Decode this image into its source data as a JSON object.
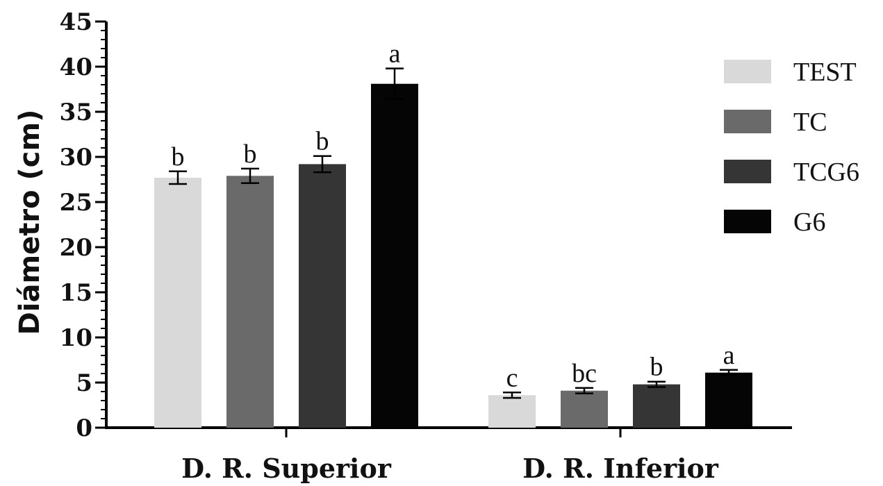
{
  "chart_data": {
    "type": "bar",
    "ylabel": "Diámetro (cm)",
    "xlabel": "",
    "ylim": [
      0,
      45
    ],
    "ytick_step": 5,
    "yticks": [
      "0",
      "5",
      "10",
      "15",
      "20",
      "25",
      "30",
      "35",
      "40",
      "45"
    ],
    "grid": false,
    "legend_placement": "top-right",
    "categories": [
      "D. R. Superior",
      "D. R. Inferior"
    ],
    "series": [
      {
        "name": "TEST",
        "color": "#d9d9d9",
        "values": [
          27.7,
          3.6
        ],
        "errors": [
          0.7,
          0.3
        ],
        "sig": [
          "b",
          "c"
        ]
      },
      {
        "name": "TC",
        "color": "#6a6a6a",
        "values": [
          27.9,
          4.1
        ],
        "errors": [
          0.8,
          0.3
        ],
        "sig": [
          "b",
          "bc"
        ]
      },
      {
        "name": "TCG6",
        "color": "#353535",
        "values": [
          29.2,
          4.8
        ],
        "errors": [
          0.9,
          0.3
        ],
        "sig": [
          "b",
          "b"
        ]
      },
      {
        "name": "G6",
        "color": "#050505",
        "values": [
          38.1,
          6.1
        ],
        "errors": [
          1.7,
          0.3
        ],
        "sig": [
          "a",
          "a"
        ]
      }
    ]
  }
}
